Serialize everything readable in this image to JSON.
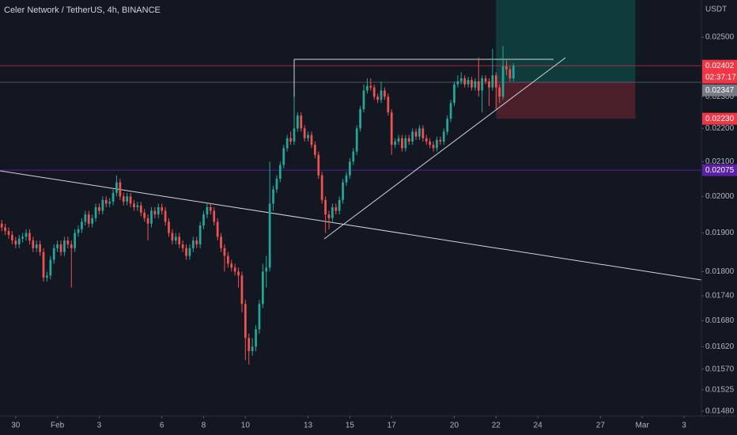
{
  "chart_data": {
    "type": "candlestick",
    "title": "Celer Network / TetherUS, 4h, BINANCE",
    "y_axis_label": "USDT",
    "log_scale": true,
    "grid": false,
    "up_color": "#26a69a",
    "down_color": "#ef5350",
    "xlim": [
      -0.5,
      201
    ],
    "ylim": [
      0.0147,
      0.02634
    ],
    "xticks": [
      {
        "value": 4,
        "label": "30"
      },
      {
        "value": 16,
        "label": "Feb"
      },
      {
        "value": 28,
        "label": "3"
      },
      {
        "value": 46,
        "label": "6"
      },
      {
        "value": 58,
        "label": "8"
      },
      {
        "value": 70,
        "label": "10"
      },
      {
        "value": 88,
        "label": "13"
      },
      {
        "value": 100,
        "label": "15"
      },
      {
        "value": 112,
        "label": "17"
      },
      {
        "value": 130,
        "label": "20"
      },
      {
        "value": 142,
        "label": "22"
      },
      {
        "value": 154,
        "label": "24"
      },
      {
        "value": 172,
        "label": "27"
      },
      {
        "value": 184,
        "label": "Mar"
      },
      {
        "value": 196,
        "label": "3"
      }
    ],
    "yticks": [
      {
        "value": 0.025,
        "label": "0.02500"
      },
      {
        "value": 0.023,
        "label": "0.02300"
      },
      {
        "value": 0.022,
        "label": "0.02200"
      },
      {
        "value": 0.021,
        "label": "0.02100"
      },
      {
        "value": 0.02,
        "label": "0.02000"
      },
      {
        "value": 0.019,
        "label": "0.01900"
      },
      {
        "value": 0.018,
        "label": "0.01800"
      },
      {
        "value": 0.0174,
        "label": "0.01740"
      },
      {
        "value": 0.0168,
        "label": "0.01680"
      },
      {
        "value": 0.0162,
        "label": "0.01620"
      },
      {
        "value": 0.0157,
        "label": "0.01570"
      },
      {
        "value": 0.01525,
        "label": "0.01525"
      },
      {
        "value": 0.0148,
        "label": "0.01480"
      }
    ],
    "price_lines": [
      {
        "value": 0.02402,
        "label": "0.02402",
        "color": "#f23645",
        "countdown": "02:37:17"
      },
      {
        "value": 0.02347,
        "label": "0.02347",
        "color": "#787b86"
      },
      {
        "value": 0.0223,
        "label": "0.02230",
        "color": "#f23645"
      },
      {
        "value": 0.02075,
        "label": "0.02075",
        "color": "#5b1fa8"
      }
    ],
    "open": [
      0.01925,
      0.01915,
      0.01905,
      0.01895,
      0.0188,
      0.0187,
      0.01885,
      0.0189,
      0.019,
      0.0188,
      0.0186,
      0.0187,
      0.0185,
      0.01785,
      0.0179,
      0.0183,
      0.0186,
      0.0187,
      0.0185,
      0.0188,
      0.0187,
      0.0186,
      0.019,
      0.0191,
      0.0193,
      0.0195,
      0.01925,
      0.0194,
      0.0197,
      0.0196,
      0.0199,
      0.0198,
      0.01985,
      0.0201,
      0.0204,
      0.02,
      0.01985,
      0.02,
      0.0198,
      0.0197,
      0.01975,
      0.01955,
      0.0194,
      0.01925,
      0.0196,
      0.0195,
      0.0197,
      0.0196,
      0.0193,
      0.019,
      0.0188,
      0.0189,
      0.0187,
      0.0186,
      0.0184,
      0.0186,
      0.0188,
      0.0187,
      0.0192,
      0.0195,
      0.0197,
      0.0196,
      0.0193,
      0.0189,
      0.0186,
      0.0184,
      0.0182,
      0.0181,
      0.018,
      0.0179,
      0.0172,
      0.0164,
      0.0161,
      0.0162,
      0.0166,
      0.0172,
      0.018,
      0.0181,
      0.0198,
      0.0202,
      0.0205,
      0.0209,
      0.0214,
      0.0217,
      0.0216,
      0.022,
      0.0224,
      0.022,
      0.0217,
      0.0218,
      0.0215,
      0.0212,
      0.0206,
      0.0199,
      0.0195,
      0.0194,
      0.0197,
      0.0196,
      0.0199,
      0.0204,
      0.0206,
      0.021,
      0.0213,
      0.022,
      0.0226,
      0.0232,
      0.02335,
      0.0233,
      0.023,
      0.0229,
      0.0232,
      0.023,
      0.0225,
      0.0215,
      0.0216,
      0.0217,
      0.0214,
      0.0217,
      0.0216,
      0.0219,
      0.02175,
      0.022,
      0.0217,
      0.0216,
      0.0215,
      0.0214,
      0.02165,
      0.0216,
      0.0219,
      0.0223,
      0.0228,
      0.0234,
      0.0235,
      0.0236,
      0.0234,
      0.02355,
      0.0233,
      0.0235,
      0.0232,
      0.0236,
      0.0235,
      0.0233,
      0.0237,
      0.0233,
      0.023,
      0.024,
      0.0239,
      0.0236
    ],
    "high": [
      0.01935,
      0.01925,
      0.01915,
      0.01905,
      0.0189,
      0.01895,
      0.019,
      0.0191,
      0.0191,
      0.0189,
      0.0188,
      0.0188,
      0.0186,
      0.018,
      0.0184,
      0.0187,
      0.0188,
      0.0188,
      0.0189,
      0.0189,
      0.0188,
      0.0191,
      0.0192,
      0.0194,
      0.0196,
      0.0196,
      0.0195,
      0.0198,
      0.0198,
      0.02,
      0.02,
      0.01995,
      0.0202,
      0.0206,
      0.0205,
      0.0201,
      0.0201,
      0.0201,
      0.0199,
      0.01985,
      0.01985,
      0.01965,
      0.0195,
      0.0197,
      0.0197,
      0.0198,
      0.0198,
      0.0197,
      0.0194,
      0.0191,
      0.019,
      0.019,
      0.0188,
      0.0187,
      0.0187,
      0.0189,
      0.0189,
      0.0193,
      0.0196,
      0.0198,
      0.0198,
      0.0197,
      0.0194,
      0.019,
      0.0187,
      0.0185,
      0.0183,
      0.0182,
      0.0181,
      0.018,
      0.0173,
      0.0165,
      0.0164,
      0.0167,
      0.0173,
      0.0182,
      0.0184,
      0.021,
      0.0203,
      0.0206,
      0.021,
      0.0215,
      0.0218,
      0.0219,
      0.023,
      0.0225,
      0.0225,
      0.0221,
      0.0219,
      0.0219,
      0.0216,
      0.0213,
      0.0207,
      0.02,
      0.0196,
      0.0198,
      0.0198,
      0.02,
      0.0205,
      0.0207,
      0.0211,
      0.0214,
      0.0221,
      0.0227,
      0.0234,
      0.0236,
      0.0236,
      0.0234,
      0.0231,
      0.0235,
      0.0233,
      0.0231,
      0.0226,
      0.0217,
      0.0218,
      0.0218,
      0.0218,
      0.0218,
      0.022,
      0.022,
      0.0221,
      0.0221,
      0.0218,
      0.0217,
      0.0216,
      0.02175,
      0.02175,
      0.022,
      0.0224,
      0.0229,
      0.0235,
      0.0237,
      0.0238,
      0.0237,
      0.02365,
      0.02365,
      0.0236,
      0.0243,
      0.0237,
      0.0237,
      0.0236,
      0.0246,
      0.0238,
      0.0234,
      0.0247,
      0.0242,
      0.024,
      0.0241
    ],
    "low": [
      0.01905,
      0.01895,
      0.01885,
      0.0187,
      0.0186,
      0.0186,
      0.01875,
      0.0188,
      0.0187,
      0.0185,
      0.0185,
      0.0184,
      0.01775,
      0.01775,
      0.0178,
      0.0182,
      0.0185,
      0.0184,
      0.0184,
      0.0186,
      0.0176,
      0.0185,
      0.0189,
      0.019,
      0.0192,
      0.01915,
      0.01915,
      0.0193,
      0.0195,
      0.0195,
      0.0197,
      0.0197,
      0.01975,
      0.02,
      0.0199,
      0.01975,
      0.01975,
      0.0197,
      0.0196,
      0.0196,
      0.01945,
      0.0193,
      0.0188,
      0.01915,
      0.0194,
      0.0194,
      0.0195,
      0.0192,
      0.0189,
      0.0187,
      0.0187,
      0.0186,
      0.0185,
      0.0183,
      0.0183,
      0.0185,
      0.0186,
      0.0186,
      0.0191,
      0.0194,
      0.0195,
      0.0192,
      0.0188,
      0.0185,
      0.018,
      0.0181,
      0.018,
      0.0179,
      0.0176,
      0.017,
      0.0159,
      0.0158,
      0.016,
      0.0161,
      0.0165,
      0.0171,
      0.0176,
      0.018,
      0.0196,
      0.0201,
      0.0204,
      0.0208,
      0.0213,
      0.0215,
      0.0215,
      0.0219,
      0.0219,
      0.0216,
      0.0216,
      0.0214,
      0.0211,
      0.0205,
      0.0198,
      0.019,
      0.0191,
      0.0193,
      0.0195,
      0.0195,
      0.0198,
      0.0203,
      0.0205,
      0.0209,
      0.0212,
      0.0219,
      0.0225,
      0.0231,
      0.0232,
      0.0229,
      0.0228,
      0.0228,
      0.0229,
      0.0224,
      0.0212,
      0.0214,
      0.0215,
      0.0213,
      0.0213,
      0.0215,
      0.0215,
      0.02165,
      0.02165,
      0.0216,
      0.0215,
      0.0214,
      0.0213,
      0.0213,
      0.0215,
      0.0215,
      0.0218,
      0.0222,
      0.0227,
      0.0233,
      0.0234,
      0.0233,
      0.0233,
      0.0232,
      0.0232,
      0.023,
      0.0225,
      0.0234,
      0.0227,
      0.0232,
      0.0226,
      0.0228,
      0.0229,
      0.0237,
      0.0235,
      0.0235
    ],
    "close": [
      0.01915,
      0.01905,
      0.01895,
      0.0188,
      0.0187,
      0.01885,
      0.0189,
      0.019,
      0.0188,
      0.0186,
      0.0187,
      0.0185,
      0.01785,
      0.0179,
      0.0183,
      0.0186,
      0.0187,
      0.0185,
      0.0188,
      0.0187,
      0.0186,
      0.019,
      0.0191,
      0.0193,
      0.0195,
      0.01925,
      0.0194,
      0.0197,
      0.0196,
      0.0199,
      0.0198,
      0.01985,
      0.0201,
      0.0204,
      0.02,
      0.01985,
      0.02,
      0.0198,
      0.0197,
      0.01975,
      0.01955,
      0.0194,
      0.01925,
      0.0196,
      0.0195,
      0.0197,
      0.0196,
      0.0193,
      0.019,
      0.0188,
      0.0189,
      0.0187,
      0.0186,
      0.0184,
      0.0186,
      0.0188,
      0.0187,
      0.0192,
      0.0195,
      0.0197,
      0.0196,
      0.0193,
      0.0189,
      0.0186,
      0.0184,
      0.0182,
      0.0181,
      0.018,
      0.0179,
      0.0172,
      0.0164,
      0.0161,
      0.0162,
      0.0166,
      0.0172,
      0.018,
      0.0181,
      0.0198,
      0.0202,
      0.0205,
      0.0209,
      0.0214,
      0.0217,
      0.0216,
      0.022,
      0.0224,
      0.022,
      0.0217,
      0.0218,
      0.0215,
      0.0212,
      0.0206,
      0.0199,
      0.0195,
      0.0194,
      0.0197,
      0.0196,
      0.0199,
      0.0204,
      0.0206,
      0.021,
      0.0213,
      0.022,
      0.0226,
      0.0232,
      0.02335,
      0.0233,
      0.023,
      0.0229,
      0.0232,
      0.023,
      0.0225,
      0.0215,
      0.0216,
      0.0217,
      0.0214,
      0.0217,
      0.0216,
      0.0219,
      0.02175,
      0.022,
      0.0217,
      0.0216,
      0.0215,
      0.0214,
      0.02165,
      0.0216,
      0.0219,
      0.0223,
      0.0228,
      0.0234,
      0.0235,
      0.0236,
      0.0234,
      0.02355,
      0.0233,
      0.0235,
      0.0232,
      0.0236,
      0.0235,
      0.0233,
      0.0237,
      0.0233,
      0.023,
      0.024,
      0.0239,
      0.0236,
      0.02402
    ]
  }
}
